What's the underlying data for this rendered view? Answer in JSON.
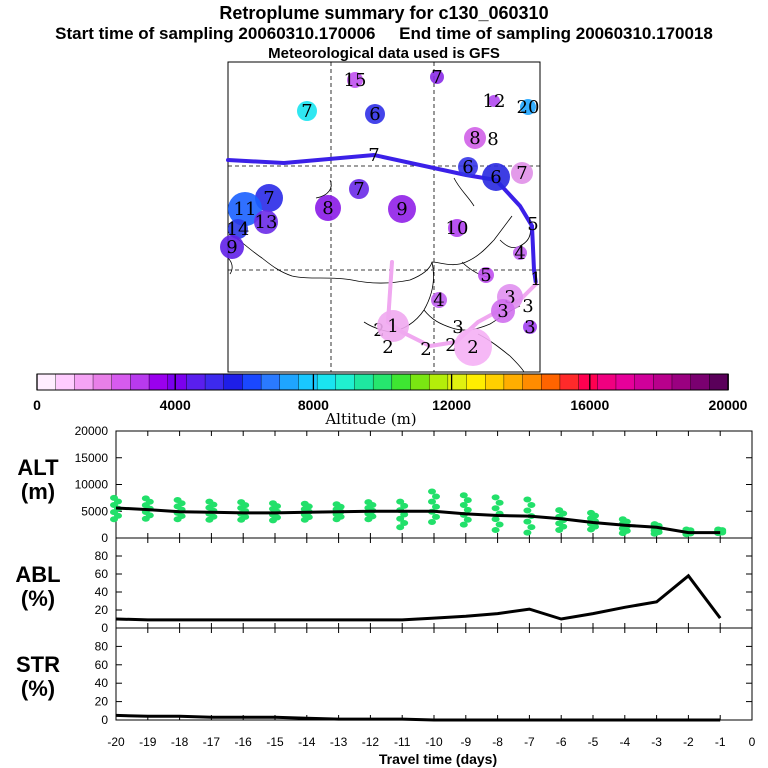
{
  "header": {
    "title": "Retroplume summary for c130_060310",
    "start": "Start time of sampling 20060310.170006",
    "end": "End time of sampling 20060310.170018",
    "met": "Meteorological data used is GFS"
  },
  "colorbar": {
    "title": "Altitude (m)",
    "tick_labels": [
      "0",
      "4000",
      "8000",
      "12000",
      "16000",
      "20000"
    ],
    "colors": [
      "#ffeeff",
      "#ffccff",
      "#f5a3f5",
      "#e87fe8",
      "#d65bee",
      "#b83aee",
      "#9a00ee",
      "#7b00ee",
      "#5a1fee",
      "#3d2aee",
      "#1e1ee8",
      "#1a48ff",
      "#2a7aff",
      "#1fa5ff",
      "#19c8ff",
      "#1ae4f0",
      "#20f0d0",
      "#1ee8a0",
      "#26e66e",
      "#3ee632",
      "#7ae612",
      "#b4ee0a",
      "#e0f010",
      "#ffee00",
      "#ffd000",
      "#ffae00",
      "#ff8c00",
      "#ff6400",
      "#ff2a2a",
      "#ff0050",
      "#f00080",
      "#e6009a",
      "#d0009a",
      "#b8008c",
      "#9a0080",
      "#7a0070",
      "#5a005a"
    ]
  },
  "map": {
    "labels": [
      {
        "n": "15",
        "c": "#c050f0"
      },
      {
        "n": "7",
        "c": "#8a2ae8"
      },
      {
        "n": "12",
        "c": "#b048f0"
      },
      {
        "n": "20",
        "c": "#1fa5ff"
      },
      {
        "n": "7",
        "c": "#1ae4f0"
      },
      {
        "n": "6",
        "c": "#3030e8"
      },
      {
        "n": "8",
        "c": "#d060e8"
      },
      {
        "n": "8",
        "c": ""
      },
      {
        "n": "7",
        "c": ""
      },
      {
        "n": "6",
        "c": "#3535e8"
      },
      {
        "n": "6",
        "c": "#2828e0"
      },
      {
        "n": "7",
        "c": "#e090e8"
      },
      {
        "n": "7",
        "c": "#2a2ae8"
      },
      {
        "n": "11",
        "c": "#1a60ff"
      },
      {
        "n": "13",
        "c": "#6a2ae8"
      },
      {
        "n": "14",
        "c": "#2a3ae8"
      },
      {
        "n": "9",
        "c": "#6020e8"
      },
      {
        "n": "8",
        "c": "#8a1ae8"
      },
      {
        "n": "9",
        "c": "#9020e8"
      },
      {
        "n": "7",
        "c": "#6a2ae8"
      },
      {
        "n": "10",
        "c": "#b040f0"
      },
      {
        "n": "5",
        "c": ""
      },
      {
        "n": "4",
        "c": "#c060f0"
      },
      {
        "n": "1",
        "c": ""
      },
      {
        "n": "5",
        "c": "#c050f0"
      },
      {
        "n": "4",
        "c": "#c060f0"
      },
      {
        "n": "3",
        "c": "#e090f0"
      },
      {
        "n": "3",
        "c": "#d070ee"
      },
      {
        "n": "3",
        "c": ""
      },
      {
        "n": "3",
        "c": "#a040f0"
      },
      {
        "n": "2",
        "c": ""
      },
      {
        "n": "1",
        "c": "#f0a8f0"
      },
      {
        "n": "2",
        "c": ""
      },
      {
        "n": "2",
        "c": ""
      },
      {
        "n": "2",
        "c": ""
      },
      {
        "n": "2",
        "c": "#f5b0f5"
      },
      {
        "n": "3",
        "c": ""
      }
    ]
  },
  "chart_data": [
    {
      "type": "scatter",
      "name": "ALT",
      "ylabel": "ALT\n(m)",
      "ylabel_lines": [
        "ALT",
        "(m)"
      ],
      "ylim": [
        0,
        20000
      ],
      "yticks": [
        "0",
        "5000",
        "10000",
        "15000",
        "20000"
      ],
      "x": [
        -20,
        -19,
        -18,
        -17,
        -16,
        -15,
        -14,
        -13,
        -12,
        -11,
        -10,
        -9,
        -8,
        -7,
        -6,
        -5,
        -4,
        -3,
        -2,
        -1
      ],
      "median": [
        5600,
        5300,
        4900,
        4800,
        4700,
        4700,
        4800,
        4900,
        5000,
        5000,
        5000,
        4500,
        4200,
        4100,
        3600,
        2900,
        2400,
        2000,
        1000,
        1000
      ],
      "spread_min": [
        3500,
        3600,
        3500,
        3400,
        3400,
        3300,
        3400,
        3500,
        3500,
        2000,
        3000,
        2500,
        1500,
        1000,
        1500,
        1600,
        900,
        800,
        700,
        900
      ],
      "spread_max": [
        7500,
        7400,
        7100,
        6800,
        6700,
        6500,
        6400,
        6300,
        6700,
        6800,
        8700,
        8000,
        7600,
        7200,
        5200,
        4700,
        3500,
        2600,
        1600,
        1600
      ],
      "scatter_color": "#22e06a",
      "line_color": "#000000"
    },
    {
      "type": "line",
      "name": "ABL",
      "ylabel_lines": [
        "ABL",
        "(%)"
      ],
      "ylim": [
        0,
        100
      ],
      "yticks": [
        "0",
        "20",
        "40",
        "60",
        "80"
      ],
      "x": [
        -20,
        -19,
        -18,
        -17,
        -16,
        -15,
        -14,
        -13,
        -12,
        -11,
        -10,
        -9,
        -8,
        -7,
        -6,
        -5,
        -4,
        -3,
        -2,
        -1
      ],
      "values": [
        10,
        9,
        9,
        9,
        9,
        9,
        9,
        9,
        9,
        9,
        11,
        13,
        16,
        21,
        10,
        16,
        23,
        29,
        58,
        11
      ]
    },
    {
      "type": "line",
      "name": "STR",
      "ylabel_lines": [
        "STR",
        "(%)"
      ],
      "ylim": [
        0,
        100
      ],
      "yticks": [
        "0",
        "20",
        "40",
        "60",
        "80"
      ],
      "x": [
        -20,
        -19,
        -18,
        -17,
        -16,
        -15,
        -14,
        -13,
        -12,
        -11,
        -10,
        -9,
        -8,
        -7,
        -6,
        -5,
        -4,
        -3,
        -2,
        -1
      ],
      "values": [
        5,
        4,
        4,
        3,
        3,
        3,
        2,
        1,
        1,
        1,
        0,
        0,
        0,
        0,
        0,
        0,
        0,
        0,
        0,
        0
      ]
    }
  ],
  "xaxis": {
    "title": "Travel time (days)",
    "ticks": [
      "-20",
      "-19",
      "-18",
      "-17",
      "-16",
      "-15",
      "-14",
      "-13",
      "-12",
      "-11",
      "-10",
      "-9",
      "-8",
      "-7",
      "-6",
      "-5",
      "-4",
      "-3",
      "-2",
      "-1",
      "0"
    ]
  }
}
